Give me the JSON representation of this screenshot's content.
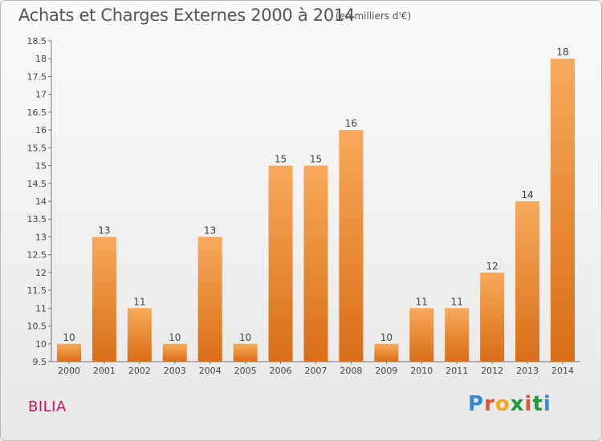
{
  "title": "Achats et Charges Externes 2000 à 2014",
  "subtitle": "(en milliers d'€)",
  "commune": "BILIA",
  "brand": {
    "letters": [
      "P",
      "r",
      "o",
      "x",
      "i",
      "t",
      "i"
    ],
    "colors": [
      "#2e8bd6",
      "#e3542e",
      "#f7a823",
      "#1e9a3c",
      "#e3542e",
      "#1e9a3c",
      "#2e8bd6"
    ]
  },
  "chart_data": {
    "type": "bar",
    "title": "Achats et Charges Externes 2000 à 2014",
    "categories": [
      "2000",
      "2001",
      "2002",
      "2003",
      "2004",
      "2005",
      "2006",
      "2007",
      "2008",
      "2009",
      "2010",
      "2011",
      "2012",
      "2013",
      "2014"
    ],
    "values": [
      10,
      13,
      11,
      10,
      13,
      10,
      15,
      15,
      16,
      10,
      11,
      11,
      12,
      14,
      18
    ],
    "ylim": [
      9.5,
      18.5
    ],
    "yticks": [
      "9.5",
      "10",
      "10.5",
      "11",
      "11.5",
      "12",
      "12.5",
      "13",
      "13.5",
      "14",
      "14.5",
      "15",
      "15.5",
      "16",
      "16.5",
      "17",
      "17.5",
      "18",
      "18.5"
    ],
    "grid": false,
    "bar_color": "#f08a2c"
  }
}
